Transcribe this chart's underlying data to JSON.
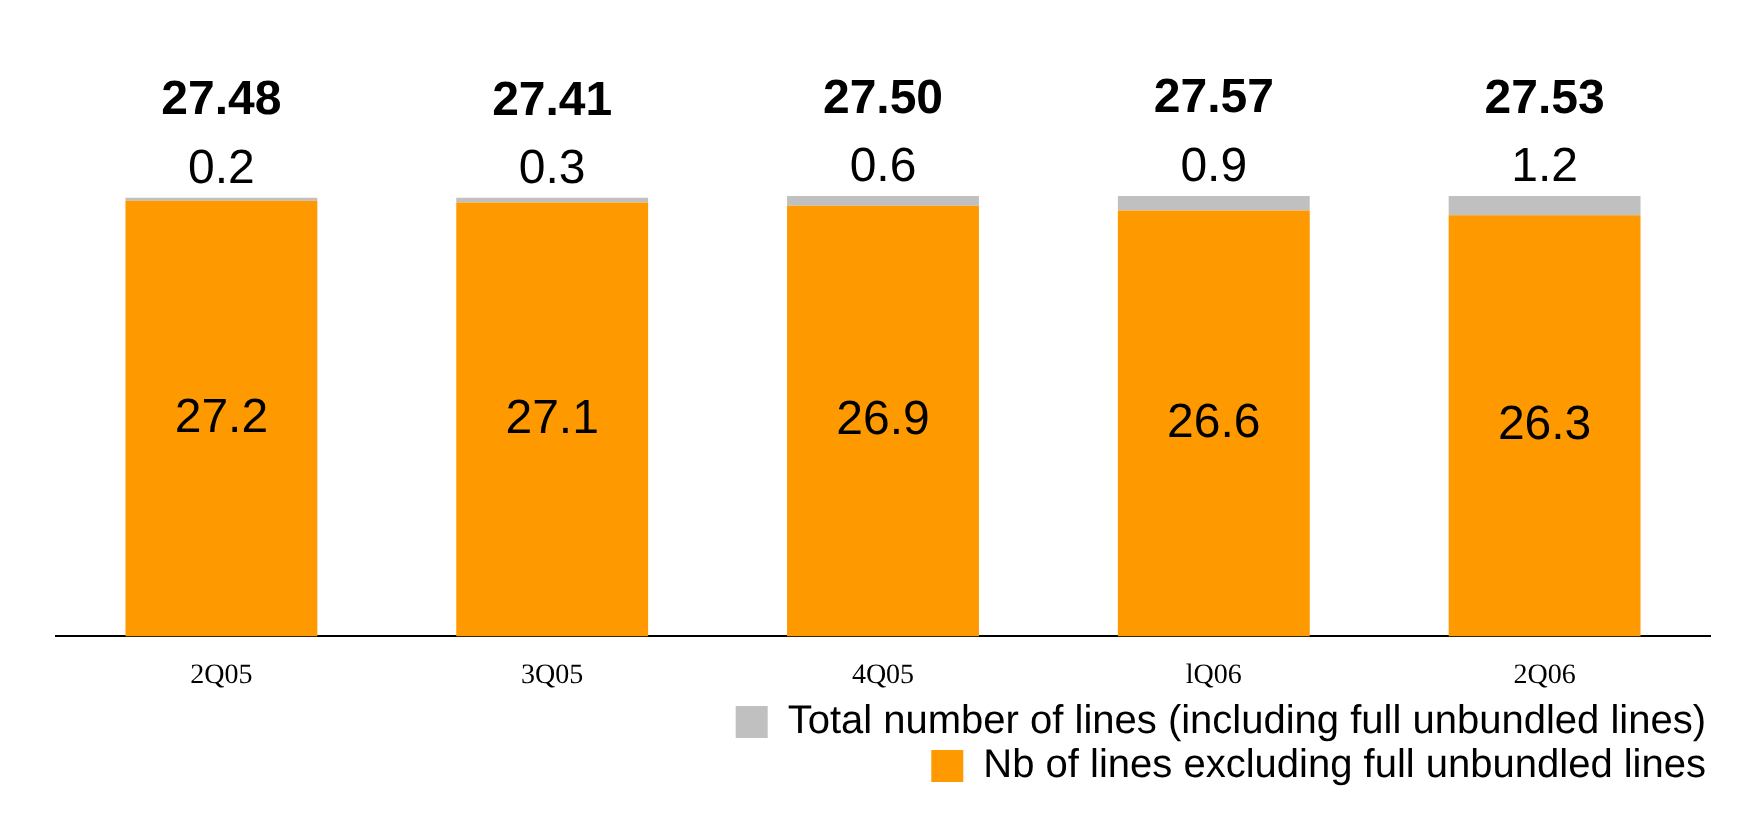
{
  "chart_data": {
    "type": "bar",
    "stacked": true,
    "categories": [
      "2Q05",
      "3Q05",
      "4Q05",
      "lQ06",
      "2Q06"
    ],
    "series": [
      {
        "name": "Nb of lines excluding full unbundled lines",
        "color": "#ff9900",
        "values": [
          27.2,
          27.1,
          26.9,
          26.6,
          26.3
        ]
      },
      {
        "name": "Total number of lines (including full unbundled lines)",
        "color": "#c0c0c0",
        "values": [
          0.2,
          0.3,
          0.6,
          0.9,
          1.2
        ]
      }
    ],
    "annotations": [
      {
        "text": "27.48",
        "x": "2Q05",
        "y": 27.48
      },
      {
        "text": "27.41",
        "x": "3Q05",
        "y": 27.41
      },
      {
        "text": "27.50",
        "x": "4Q05",
        "y": 27.5
      },
      {
        "text": "27.57",
        "x": "lQ06",
        "y": 27.57
      },
      {
        "text": "27.53",
        "x": "2Q06",
        "y": 27.53
      }
    ],
    "tick_labels": "x",
    "data_labels": true,
    "grid": false,
    "legend": "bottom right"
  }
}
